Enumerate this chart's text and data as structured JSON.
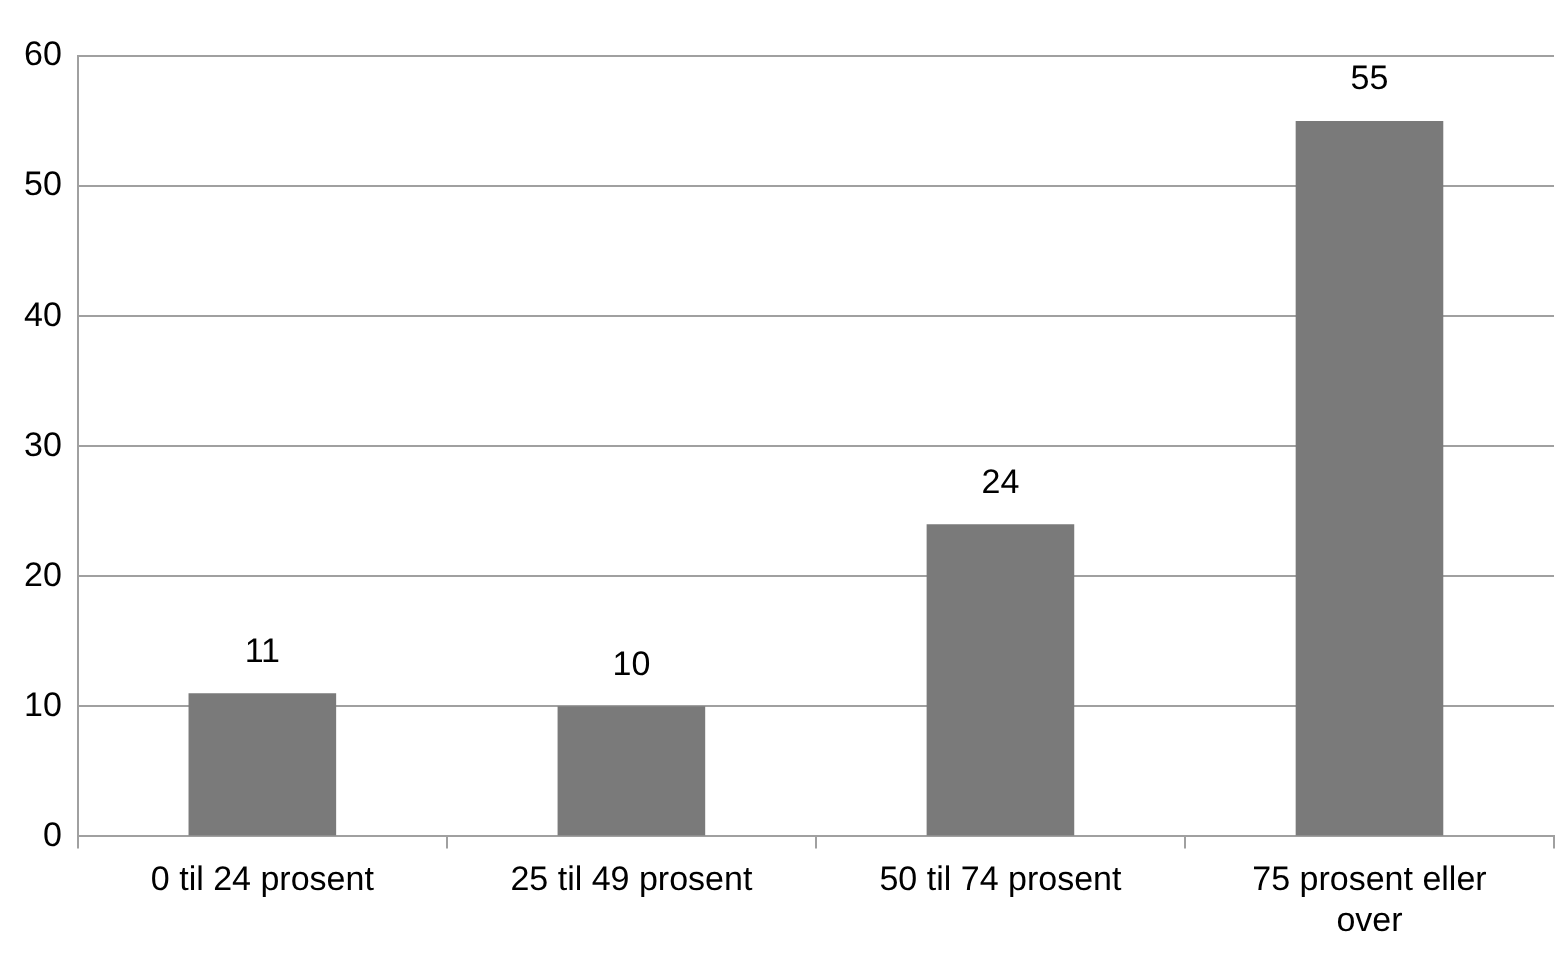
{
  "chart_data": {
    "type": "bar",
    "categories": [
      "0 til 24 prosent",
      "25 til 49 prosent",
      "50 til 74 prosent",
      "75 prosent eller over"
    ],
    "values": [
      11,
      10,
      24,
      55
    ],
    "color": "#7a7a7a",
    "ylim": [
      0,
      60
    ],
    "yticks": [
      0,
      10,
      20,
      30,
      40,
      50,
      60
    ],
    "grid": "y",
    "data_labels": true,
    "legend": false
  }
}
